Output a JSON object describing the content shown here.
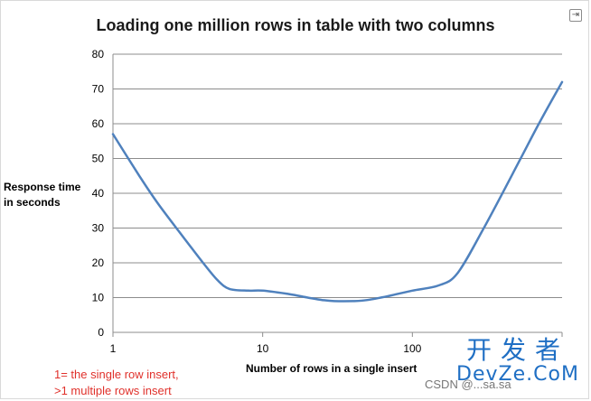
{
  "chart_data": {
    "type": "line",
    "title": "Loading one million rows in table with two columns",
    "xlabel": "Number of rows in a single insert",
    "ylabel_lines": [
      "Response time",
      "in seconds"
    ],
    "x_scale": "log",
    "xlim": [
      1,
      1000
    ],
    "ylim": [
      0,
      80
    ],
    "x_ticks": [
      1,
      10,
      100,
      1000
    ],
    "x_tick_labels": [
      "1",
      "10",
      "100",
      ""
    ],
    "y_ticks": [
      0,
      10,
      20,
      30,
      40,
      50,
      60,
      70,
      80
    ],
    "grid": "horizontal",
    "legend": "none",
    "annotation": [
      "1= the single row  insert,",
      ">1 multiple rows insert"
    ],
    "series": [
      {
        "x": [
          1,
          1.5,
          2,
          3,
          4,
          5,
          6,
          8,
          10,
          15,
          20,
          25,
          30,
          40,
          50,
          70,
          100,
          150,
          200,
          300,
          500,
          700,
          1000
        ],
        "y": [
          57,
          45,
          37,
          27,
          20,
          15,
          12.5,
          12,
          12,
          11,
          10,
          9.3,
          9,
          9,
          9.3,
          10.5,
          12,
          13.5,
          17,
          30,
          48,
          60,
          72
        ],
        "color": "#4f81bd"
      }
    ]
  },
  "watermark": {
    "cn": "开发者",
    "en": "DevZe.CoM",
    "bottom": "CSDN @...sa.sa"
  },
  "corner_icon": "exit-icon"
}
